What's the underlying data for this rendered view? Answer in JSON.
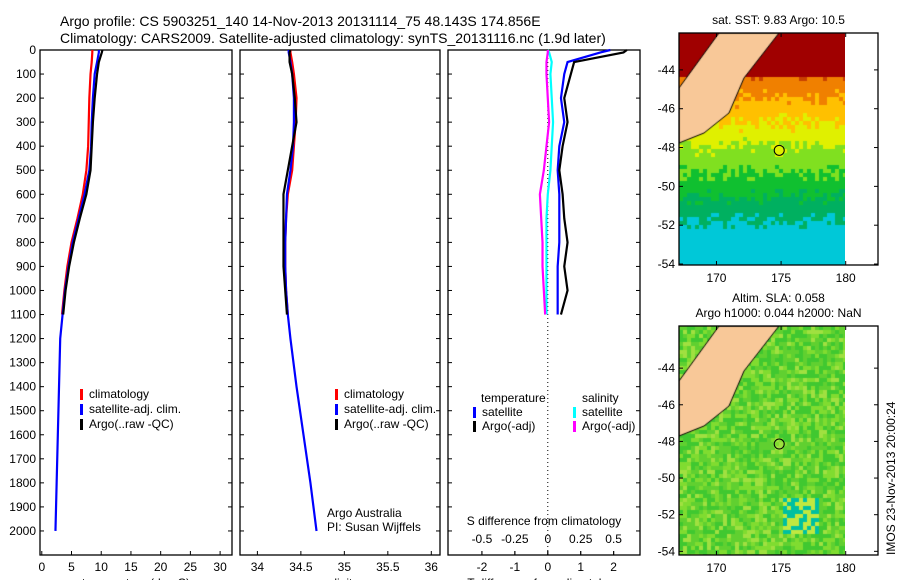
{
  "header": {
    "line1": "Argo profile: CS 5903251_140 14-Nov-2013 20131114_75 48.143S 174.856E",
    "line2": "Climatology: CARS2009. Satellite-adjusted climatology: synTS_20131116.nc (1.9d later)"
  },
  "footer": {
    "stamp": "IMOS 23-Nov-2013 20:00:24"
  },
  "colors": {
    "climatology": "#ff0000",
    "satellite": "#0000ff",
    "argo": "#000000",
    "sal_sat": "#00ffff",
    "sal_argo": "#ff00ff"
  },
  "chart_data": [
    {
      "type": "line",
      "id": "temperature",
      "xlabel": "temperature (deg C)",
      "xlim": [
        -0.3,
        32
      ],
      "xticks": [
        0,
        5,
        10,
        15,
        20,
        25,
        30
      ],
      "ylim": [
        0,
        2100
      ],
      "yticks": [
        0,
        100,
        200,
        300,
        400,
        500,
        600,
        700,
        800,
        900,
        1000,
        1100,
        1200,
        1300,
        1400,
        1500,
        1600,
        1700,
        1800,
        1900,
        2000
      ],
      "legend": [
        "climatology",
        "satellite-adj. clim.",
        "Argo(..raw -QC)"
      ],
      "series": [
        {
          "name": "climatology",
          "color": "#ff0000",
          "depth": [
            0,
            10,
            50,
            100,
            200,
            300,
            400,
            500,
            600,
            700,
            800,
            900,
            1000,
            1100
          ],
          "values": [
            8.5,
            8.5,
            8.4,
            8.2,
            8.0,
            7.9,
            7.8,
            7.5,
            6.9,
            6.0,
            5.0,
            4.3,
            3.8,
            3.4
          ]
        },
        {
          "name": "satellite-adj. clim.",
          "color": "#0000ff",
          "depth": [
            0,
            10,
            50,
            100,
            200,
            300,
            400,
            500,
            600,
            700,
            800,
            900,
            1000,
            1100,
            1200,
            1400,
            1600,
            1800,
            2000
          ],
          "values": [
            9.6,
            9.6,
            9.3,
            8.9,
            8.6,
            8.4,
            8.3,
            8.0,
            7.2,
            6.2,
            5.2,
            4.5,
            3.9,
            3.5,
            3.1,
            2.9,
            2.7,
            2.5,
            2.3
          ]
        },
        {
          "name": "Argo(..raw -QC)",
          "color": "#000000",
          "depth": [
            0,
            10,
            50,
            100,
            200,
            300,
            400,
            500,
            600,
            700,
            800,
            900,
            1000,
            1100
          ],
          "values": [
            10.2,
            10.1,
            9.6,
            9.3,
            8.9,
            8.6,
            8.4,
            8.2,
            7.5,
            6.4,
            5.4,
            4.6,
            4.0,
            3.6
          ]
        }
      ]
    },
    {
      "type": "line",
      "id": "salinity",
      "xlabel": "salinity",
      "xlim": [
        33.8,
        36.1
      ],
      "xticks": [
        34,
        34.5,
        35,
        35.5,
        36
      ],
      "ylim": [
        0,
        2100
      ],
      "legend": [
        "climatology",
        "satellite-adj. clim.",
        "Argo(..raw -QC)"
      ],
      "annotations": [
        "Argo Australia",
        "PI: Susan Wijffels"
      ],
      "series": [
        {
          "name": "climatology",
          "color": "#ff0000",
          "depth": [
            0,
            10,
            50,
            100,
            200,
            300,
            400,
            500,
            600,
            700,
            800,
            900,
            1000,
            1100
          ],
          "values": [
            34.38,
            34.38,
            34.4,
            34.42,
            34.45,
            34.44,
            34.42,
            34.4,
            34.35,
            34.33,
            34.32,
            34.32,
            34.33,
            34.35
          ]
        },
        {
          "name": "satellite-adj. clim.",
          "color": "#0000ff",
          "depth": [
            0,
            10,
            50,
            100,
            200,
            300,
            400,
            500,
            600,
            700,
            800,
            900,
            1000,
            1100,
            1200,
            1400,
            1600,
            1800,
            2000
          ],
          "values": [
            34.36,
            34.36,
            34.38,
            34.4,
            34.42,
            34.42,
            34.41,
            34.38,
            34.34,
            34.33,
            34.32,
            34.32,
            34.33,
            34.35,
            34.38,
            34.45,
            34.53,
            34.61,
            34.68
          ]
        },
        {
          "name": "Argo(..raw -QC)",
          "color": "#000000",
          "depth": [
            0,
            10,
            50,
            100,
            200,
            300,
            400,
            500,
            600,
            700,
            800,
            900,
            1000,
            1100
          ],
          "values": [
            34.38,
            34.37,
            34.37,
            34.4,
            34.43,
            34.45,
            34.4,
            34.35,
            34.3,
            34.3,
            34.3,
            34.3,
            34.32,
            34.34
          ]
        }
      ]
    },
    {
      "type": "line",
      "id": "difference",
      "xlabel": "T difference from climatology",
      "x2label": "S difference from climatology",
      "xlim": [
        -3.03,
        2.8
      ],
      "xticks": [
        -2,
        -1,
        0,
        1,
        2
      ],
      "x2ticks": [
        -0.5,
        -0.25,
        0,
        0.25,
        0.5
      ],
      "x2ticklabels": [
        "-0.5",
        "-0.25",
        "0",
        "0.25",
        "0.5"
      ],
      "ylim": [
        0,
        2100
      ],
      "legend_titles": [
        "temperature",
        "salinity"
      ],
      "legend": [
        "satellite",
        "Argo(-adj)",
        "satellite",
        "Argo(-adj)"
      ],
      "series": [
        {
          "name": "T satellite",
          "color": "#0000ff",
          "unit": "T",
          "depth": [
            0,
            10,
            50,
            100,
            200,
            300,
            400,
            500,
            600,
            700,
            800,
            900,
            1000,
            1100
          ],
          "values": [
            1.9,
            1.6,
            0.6,
            0.5,
            0.4,
            0.5,
            0.35,
            0.3,
            0.35,
            0.35,
            0.35,
            0.3,
            0.3,
            0.3
          ]
        },
        {
          "name": "T Argo(-adj)",
          "color": "#000000",
          "unit": "T",
          "depth": [
            0,
            10,
            50,
            100,
            200,
            300,
            400,
            500,
            600,
            700,
            800,
            900,
            1000,
            1100
          ],
          "values": [
            2.4,
            2.3,
            0.8,
            0.7,
            0.5,
            0.6,
            0.45,
            0.35,
            0.45,
            0.5,
            0.6,
            0.5,
            0.6,
            0.4
          ]
        },
        {
          "name": "S satellite",
          "color": "#00ffff",
          "unit": "S",
          "depth": [
            0,
            10,
            50,
            100,
            200,
            300,
            400,
            500,
            600,
            700,
            800,
            900,
            1000,
            1100
          ],
          "values": [
            0,
            0.01,
            0.03,
            0.02,
            0.03,
            0.04,
            0.03,
            0.02,
            0,
            -0.01,
            -0.01,
            -0.01,
            -0.01,
            -0.01
          ]
        },
        {
          "name": "S Argo(-adj)",
          "color": "#ff00ff",
          "unit": "S",
          "depth": [
            0,
            10,
            50,
            100,
            200,
            300,
            400,
            500,
            600,
            700,
            800,
            900,
            1000,
            1100
          ],
          "values": [
            0,
            0,
            -0.01,
            -0.01,
            0,
            0.01,
            -0.01,
            -0.03,
            -0.06,
            -0.05,
            -0.04,
            -0.04,
            -0.03,
            -0.02
          ]
        }
      ]
    },
    {
      "type": "heatmap",
      "id": "sst-map",
      "title": "sat. SST: 9.83 Argo: 10.5",
      "xticks": [
        170,
        175,
        180
      ],
      "yticks": [
        -44,
        -46,
        -48,
        -50,
        -52,
        -54
      ],
      "xlim": [
        167.1,
        182.5
      ],
      "ylim": [
        -54.05,
        -42.1
      ],
      "data_lon_max": 180,
      "float_pos": [
        174.856,
        -48.143
      ]
    },
    {
      "type": "heatmap",
      "id": "sla-map",
      "title": "Altim. SLA: 0.058",
      "subtitle": "Argo h1000: 0.044 h2000: NaN",
      "xticks": [
        170,
        175,
        180
      ],
      "yticks": [
        -44,
        -46,
        -48,
        -50,
        -52,
        -54
      ],
      "xlim": [
        167.1,
        182.5
      ],
      "ylim": [
        -54.2,
        -41.7
      ],
      "data_lon_max": 180,
      "float_pos": [
        174.856,
        -48.143
      ]
    }
  ]
}
